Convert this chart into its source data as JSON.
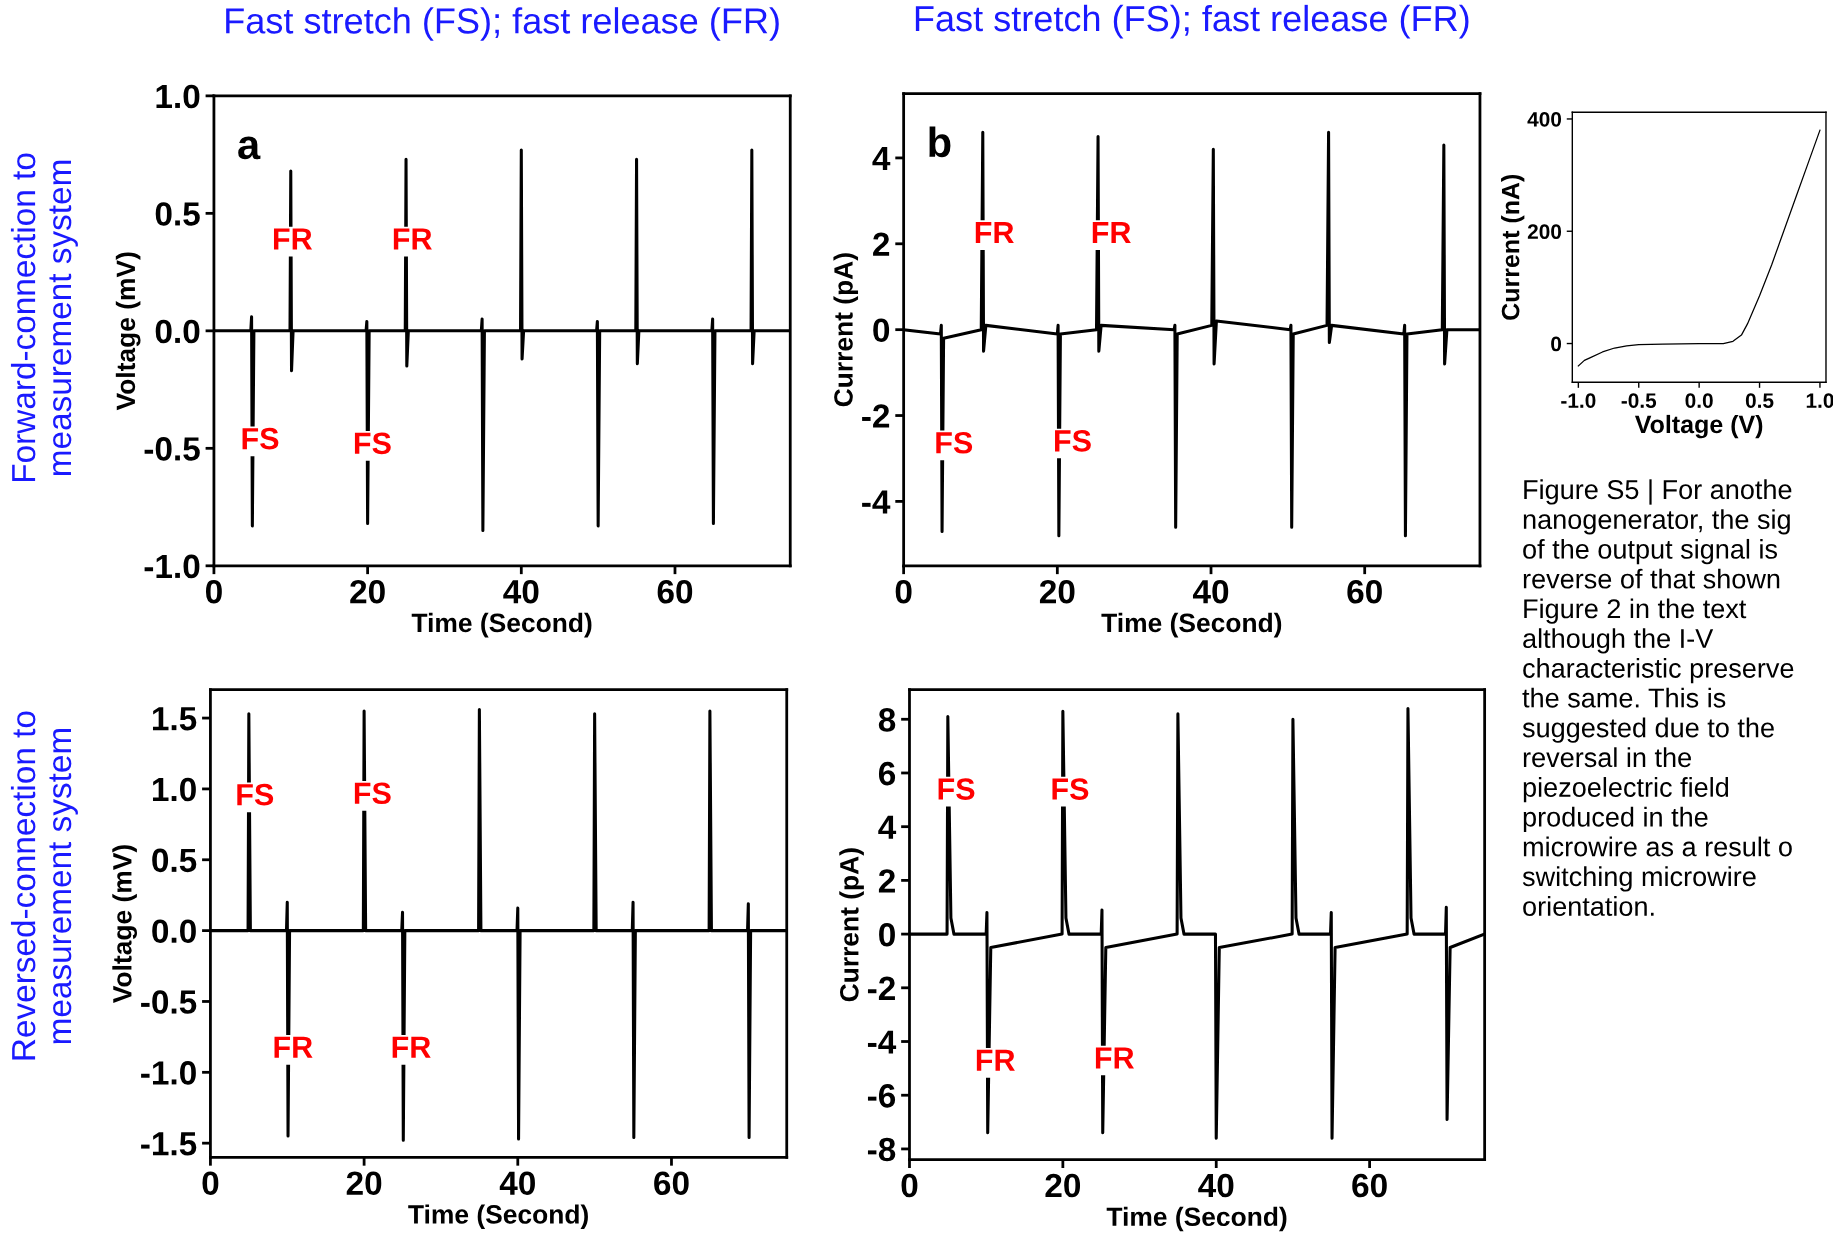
{
  "chart_data": [
    {
      "type": "line",
      "title": "Fast stretch (FS); fast release (FR)",
      "xlabel": "Time (Second)",
      "ylabel": "Voltage (mV)",
      "annotations": [
        "a",
        "Forward-connection to\nmeasurement system",
        "FR",
        "FR",
        "FS",
        "FS"
      ],
      "series": [
        {
          "color": "#000000",
          "x": [
            0,
            4.8,
            4.9,
            5.0,
            5.2,
            9.9,
            10.0,
            10.1,
            10.3,
            19.8,
            19.9,
            20.0,
            20.2,
            24.9,
            25.0,
            25.1,
            25.3,
            34.8,
            34.9,
            35.0,
            35.2,
            39.9,
            40.0,
            40.1,
            40.3,
            49.8,
            49.9,
            50.0,
            50.2,
            54.9,
            55.0,
            55.1,
            55.3,
            64.8,
            64.9,
            65.0,
            65.2,
            69.9,
            70.0,
            70.1,
            70.3,
            75
          ],
          "values": [
            0,
            0,
            0.06,
            -0.83,
            0,
            0,
            0.68,
            -0.17,
            0,
            0,
            0.04,
            -0.82,
            0,
            0,
            0.73,
            -0.15,
            0,
            0,
            0.05,
            -0.85,
            0,
            0,
            0.77,
            -0.12,
            0,
            0,
            0.04,
            -0.83,
            0,
            0,
            0.73,
            -0.14,
            0,
            0,
            0.05,
            -0.82,
            0,
            0,
            0.77,
            -0.14,
            0,
            0
          ]
        }
      ],
      "xlim": [
        0,
        75
      ],
      "xticks": [
        0,
        20,
        40,
        60
      ],
      "ylim": [
        -1,
        1
      ],
      "yticks": [
        {
          "value": -1,
          "label": "-1.0"
        },
        {
          "value": -0.5,
          "label": "-0.5"
        },
        {
          "value": 0,
          "label": "0.0"
        },
        {
          "value": 0.5,
          "label": "0.5"
        },
        {
          "value": 1,
          "label": "1.0"
        }
      ]
    },
    {
      "type": "line",
      "title": "Fast stretch (FS); fast release (FR)",
      "xlabel": "Time (Second)",
      "ylabel": "Current (pA)",
      "annotations": [
        "b",
        "FR",
        "FR",
        "FS",
        "FS"
      ],
      "series": [
        {
          "color": "#000000",
          "x": [
            0,
            4.8,
            4.9,
            5.0,
            5.2,
            10.1,
            10.3,
            10.4,
            10.7,
            20.0,
            20.1,
            20.2,
            20.4,
            25.1,
            25.3,
            25.4,
            25.7,
            35.2,
            35.3,
            35.4,
            35.6,
            40.1,
            40.3,
            40.4,
            40.7,
            50.3,
            50.4,
            50.5,
            50.7,
            55.1,
            55.3,
            55.4,
            55.7,
            65.1,
            65.2,
            65.3,
            65.5,
            70.1,
            70.3,
            70.4,
            70.7,
            75
          ],
          "values": [
            0,
            -0.1,
            0.1,
            -4.7,
            -0.2,
            0,
            4.6,
            -0.5,
            0.1,
            -0.1,
            0.1,
            -4.8,
            -0.1,
            0,
            4.5,
            -0.5,
            0.1,
            0,
            0.1,
            -4.6,
            -0.1,
            0.1,
            4.2,
            -0.8,
            0.2,
            0,
            0.1,
            -4.6,
            -0.1,
            0.1,
            4.6,
            -0.3,
            0.1,
            -0.1,
            0.1,
            -4.8,
            -0.1,
            0,
            4.3,
            -0.8,
            0,
            0
          ]
        }
      ],
      "xlim": [
        0,
        75
      ],
      "xticks": [
        0,
        20,
        40,
        60
      ],
      "ylim": [
        -5.5,
        5.5
      ],
      "yticks": [
        -4,
        -2,
        0,
        2,
        4
      ]
    },
    {
      "type": "line",
      "xlabel": "Time (Second)",
      "ylabel": "Voltage (mV)",
      "annotations": [
        "Reversed-connection to\nmeasurement system",
        "FS",
        "FS",
        "FR",
        "FR"
      ],
      "series": [
        {
          "color": "#000000",
          "x": [
            0,
            4.9,
            5.0,
            5.2,
            9.9,
            10.0,
            10.1,
            10.3,
            19.9,
            20.0,
            20.2,
            24.9,
            25.0,
            25.1,
            25.3,
            34.9,
            35.0,
            35.2,
            39.9,
            40.0,
            40.1,
            40.3,
            49.9,
            50.0,
            50.2,
            54.9,
            55.0,
            55.1,
            55.3,
            64.9,
            65.0,
            65.2,
            69.9,
            70.0,
            70.1,
            70.3,
            75
          ],
          "values": [
            0,
            0,
            1.53,
            0,
            0,
            0.2,
            -1.45,
            0,
            0,
            1.55,
            0,
            0,
            0.13,
            -1.48,
            0,
            0,
            1.56,
            0,
            0,
            0.16,
            -1.47,
            0,
            0,
            1.53,
            0,
            0,
            0.2,
            -1.46,
            0,
            0,
            1.55,
            0,
            0,
            0.19,
            -1.46,
            0,
            0
          ]
        }
      ],
      "xlim": [
        0,
        75
      ],
      "xticks": [
        0,
        20,
        40,
        60
      ],
      "ylim": [
        -1.6,
        1.7
      ],
      "yticks": [
        {
          "value": -1.5,
          "label": "-1.5"
        },
        {
          "value": -1,
          "label": "-1.0"
        },
        {
          "value": -0.5,
          "label": "-0.5"
        },
        {
          "value": 0,
          "label": "0.0"
        },
        {
          "value": 0.5,
          "label": "0.5"
        },
        {
          "value": 1,
          "label": "1.0"
        },
        {
          "value": 1.5,
          "label": "1.5"
        }
      ]
    },
    {
      "type": "line",
      "xlabel": "Time (Second)",
      "ylabel": "Current (pA)",
      "annotations": [
        "FS",
        "FS",
        "FR",
        "FR"
      ],
      "series": [
        {
          "color": "#000000",
          "x": [
            0,
            4.9,
            5.0,
            5.4,
            5.8,
            10.0,
            10.1,
            10.2,
            10.6,
            19.9,
            20.0,
            20.4,
            20.8,
            25.0,
            25.1,
            25.2,
            25.6,
            34.9,
            35.0,
            35.4,
            35.8,
            39.9,
            40.0,
            40.4,
            49.9,
            50.0,
            50.4,
            50.8,
            54.9,
            55.0,
            55.1,
            55.5,
            64.9,
            65.0,
            65.4,
            65.8,
            69.9,
            70.0,
            70.1,
            70.5,
            75
          ],
          "values": [
            0,
            0,
            8.1,
            0.6,
            0,
            0,
            0.8,
            -7.4,
            -0.5,
            0,
            8.3,
            0.6,
            0,
            0,
            0.9,
            -7.4,
            -0.5,
            0,
            8.2,
            0.6,
            0,
            0,
            -7.6,
            -0.5,
            0,
            8.0,
            0.6,
            0,
            0,
            0.8,
            -7.6,
            -0.5,
            0,
            8.4,
            0.6,
            0,
            0,
            1.0,
            -6.9,
            -0.5,
            0
          ]
        }
      ],
      "xlim": [
        0,
        75
      ],
      "xticks": [
        0,
        20,
        40,
        60
      ],
      "ylim": [
        -8.4,
        9.1
      ],
      "yticks": [
        -8,
        -6,
        -4,
        -2,
        0,
        2,
        4,
        6,
        8
      ]
    },
    {
      "type": "line",
      "xlabel": "Voltage (V)",
      "ylabel": "Current (nA)",
      "annotations": [
        "Figure S5 | For anothe\nnanogenerator, the sig\nof the output signal is\nreverse of that shown\nFigure 2 in the text\nalthough the I-V\ncharacteristic preserve\nthe same. This is\nsuggested due to the\nreversal in the\npiezoelectric field\nproduced in the\nmicrowire as a result o\nswitching microwire\norientation."
      ],
      "series": [
        {
          "color": "#000000",
          "x": [
            -1.0,
            -0.95,
            -0.9,
            -0.8,
            -0.7,
            -0.6,
            -0.5,
            -0.3,
            0.0,
            0.2,
            0.28,
            0.35,
            0.4,
            0.5,
            0.6,
            0.7,
            0.8,
            0.9,
            1.0
          ],
          "values": [
            -40,
            -30,
            -25,
            -15,
            -8,
            -4,
            -2,
            -1,
            0,
            0,
            4,
            15,
            35,
            85,
            140,
            200,
            260,
            320,
            380
          ]
        }
      ],
      "xlim": [
        -1.05,
        1.05
      ],
      "xticks": [
        {
          "value": -1,
          "label": "-1.0"
        },
        {
          "value": -0.5,
          "label": "-0.5"
        },
        {
          "value": 0,
          "label": "0.0"
        },
        {
          "value": 0.5,
          "label": "0.5"
        },
        {
          "value": 1,
          "label": "1.0"
        }
      ],
      "ylim": [
        -69,
        412
      ],
      "yticks": [
        0,
        200,
        400
      ]
    }
  ]
}
